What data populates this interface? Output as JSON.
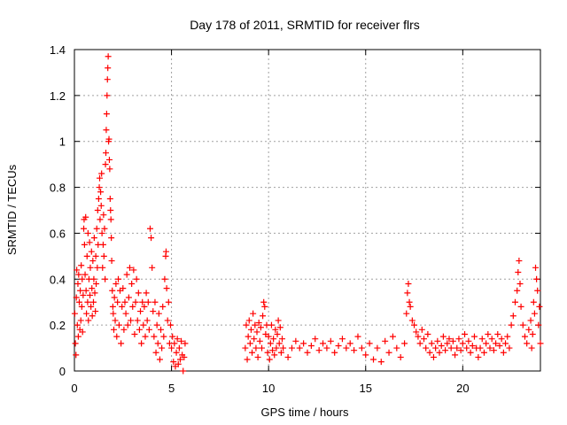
{
  "chart_data": {
    "type": "scatter",
    "title": "Day 178 of 2011, SRMTID for receiver flrs",
    "xlabel": "GPS time / hours",
    "ylabel": "SRMTID / TECUs",
    "xlim": [
      0,
      24
    ],
    "ylim": [
      0,
      1.4
    ],
    "x_ticks": [
      0,
      5,
      10,
      15,
      20
    ],
    "x_tick_labels": [
      "0",
      "5",
      "10",
      "15",
      "20"
    ],
    "y_ticks": [
      0,
      0.2,
      0.4,
      0.6,
      0.8,
      1,
      1.2,
      1.4
    ],
    "y_tick_labels": [
      "0",
      "0.2",
      "0.4",
      "0.6",
      "0.8",
      "1",
      "1.2",
      "1.4"
    ],
    "grid": true,
    "marker": "+",
    "color": "#ff0000",
    "series": [
      {
        "name": "SRMTID",
        "points": [
          [
            0.02,
            0.25
          ],
          [
            0.05,
            0.12
          ],
          [
            0.08,
            0.07
          ],
          [
            0.1,
            0.32
          ],
          [
            0.12,
            0.44
          ],
          [
            0.15,
            0.2
          ],
          [
            0.18,
            0.38
          ],
          [
            0.2,
            0.15
          ],
          [
            0.22,
            0.42
          ],
          [
            0.25,
            0.3
          ],
          [
            0.28,
            0.18
          ],
          [
            0.3,
            0.35
          ],
          [
            0.33,
            0.22
          ],
          [
            0.35,
            0.46
          ],
          [
            0.38,
            0.28
          ],
          [
            0.4,
            0.4
          ],
          [
            0.42,
            0.17
          ],
          [
            0.45,
            0.33
          ],
          [
            0.48,
            0.62
          ],
          [
            0.5,
            0.66
          ],
          [
            0.52,
            0.55
          ],
          [
            0.55,
            0.42
          ],
          [
            0.58,
            0.67
          ],
          [
            0.6,
            0.35
          ],
          [
            0.62,
            0.25
          ],
          [
            0.65,
            0.5
          ],
          [
            0.68,
            0.3
          ],
          [
            0.7,
            0.6
          ],
          [
            0.72,
            0.22
          ],
          [
            0.75,
            0.4
          ],
          [
            0.78,
            0.56
          ],
          [
            0.8,
            0.33
          ],
          [
            0.82,
            0.45
          ],
          [
            0.85,
            0.28
          ],
          [
            0.88,
            0.52
          ],
          [
            0.9,
            0.36
          ],
          [
            0.92,
            0.24
          ],
          [
            0.95,
            0.48
          ],
          [
            0.98,
            0.3
          ],
          [
            1.0,
            0.4
          ],
          [
            1.02,
            0.58
          ],
          [
            1.05,
            0.34
          ],
          [
            1.08,
            0.26
          ],
          [
            1.1,
            0.5
          ],
          [
            1.12,
            0.38
          ],
          [
            1.15,
            0.62
          ],
          [
            1.18,
            0.45
          ],
          [
            1.2,
            0.7
          ],
          [
            1.22,
            0.55
          ],
          [
            1.25,
            0.75
          ],
          [
            1.28,
            0.8
          ],
          [
            1.3,
            0.84
          ],
          [
            1.32,
            0.66
          ],
          [
            1.35,
            0.78
          ],
          [
            1.38,
            0.72
          ],
          [
            1.4,
            0.86
          ],
          [
            1.42,
            0.6
          ],
          [
            1.45,
            0.45
          ],
          [
            1.48,
            0.55
          ],
          [
            1.5,
            0.68
          ],
          [
            1.52,
            0.5
          ],
          [
            1.55,
            0.62
          ],
          [
            1.58,
            0.4
          ],
          [
            1.6,
            0.9
          ],
          [
            1.62,
            0.95
          ],
          [
            1.64,
            1.05
          ],
          [
            1.66,
            1.12
          ],
          [
            1.68,
            1.2
          ],
          [
            1.7,
            1.27
          ],
          [
            1.72,
            1.32
          ],
          [
            1.74,
            1.37
          ],
          [
            1.76,
            1.0
          ],
          [
            1.78,
            1.01
          ],
          [
            1.8,
            0.92
          ],
          [
            1.82,
            0.88
          ],
          [
            1.84,
            0.75
          ],
          [
            1.86,
            0.7
          ],
          [
            1.88,
            0.66
          ],
          [
            1.9,
            0.58
          ],
          [
            1.92,
            0.48
          ],
          [
            1.95,
            0.35
          ],
          [
            1.98,
            0.28
          ],
          [
            2.0,
            0.25
          ],
          [
            2.03,
            0.18
          ],
          [
            2.06,
            0.32
          ],
          [
            2.1,
            0.22
          ],
          [
            2.14,
            0.38
          ],
          [
            2.18,
            0.15
          ],
          [
            2.22,
            0.3
          ],
          [
            2.26,
            0.4
          ],
          [
            2.3,
            0.2
          ],
          [
            2.35,
            0.35
          ],
          [
            2.4,
            0.12
          ],
          [
            2.45,
            0.28
          ],
          [
            2.5,
            0.36
          ],
          [
            2.55,
            0.18
          ],
          [
            2.6,
            0.3
          ],
          [
            2.65,
            0.25
          ],
          [
            2.7,
            0.42
          ],
          [
            2.75,
            0.2
          ],
          [
            2.8,
            0.32
          ],
          [
            2.85,
            0.45
          ],
          [
            2.9,
            0.22
          ],
          [
            2.95,
            0.38
          ],
          [
            3.0,
            0.28
          ],
          [
            3.05,
            0.44
          ],
          [
            3.1,
            0.16
          ],
          [
            3.15,
            0.3
          ],
          [
            3.2,
            0.4
          ],
          [
            3.25,
            0.22
          ],
          [
            3.3,
            0.34
          ],
          [
            3.35,
            0.18
          ],
          [
            3.4,
            0.26
          ],
          [
            3.45,
            0.12
          ],
          [
            3.5,
            0.3
          ],
          [
            3.55,
            0.2
          ],
          [
            3.6,
            0.28
          ],
          [
            3.65,
            0.15
          ],
          [
            3.7,
            0.34
          ],
          [
            3.75,
            0.22
          ],
          [
            3.8,
            0.3
          ],
          [
            3.85,
            0.18
          ],
          [
            3.9,
            0.62
          ],
          [
            3.95,
            0.58
          ],
          [
            4.0,
            0.45
          ],
          [
            4.05,
            0.26
          ],
          [
            4.1,
            0.15
          ],
          [
            4.15,
            0.3
          ],
          [
            4.2,
            0.08
          ],
          [
            4.25,
            0.2
          ],
          [
            4.3,
            0.12
          ],
          [
            4.35,
            0.25
          ],
          [
            4.4,
            0.05
          ],
          [
            4.45,
            0.18
          ],
          [
            4.5,
            0.1
          ],
          [
            4.55,
            0.28
          ],
          [
            4.6,
            0.15
          ],
          [
            4.65,
            0.4
          ],
          [
            4.7,
            0.5
          ],
          [
            4.72,
            0.52
          ],
          [
            4.75,
            0.36
          ],
          [
            4.8,
            0.22
          ],
          [
            4.85,
            0.3
          ],
          [
            4.9,
            0.12
          ],
          [
            4.95,
            0.2
          ],
          [
            5.0,
            0.1
          ],
          [
            5.05,
            0.15
          ],
          [
            5.1,
            0.04
          ],
          [
            5.15,
            0.12
          ],
          [
            5.2,
            0.02
          ],
          [
            5.25,
            0.08
          ],
          [
            5.3,
            0.14
          ],
          [
            5.35,
            0.03
          ],
          [
            5.4,
            0.1
          ],
          [
            5.45,
            0.05
          ],
          [
            5.5,
            0.13
          ],
          [
            5.55,
            0.07
          ],
          [
            5.6,
            0.0
          ],
          [
            5.65,
            0.06
          ],
          [
            5.7,
            0.12
          ],
          [
            8.8,
            0.1
          ],
          [
            8.85,
            0.2
          ],
          [
            8.9,
            0.05
          ],
          [
            8.95,
            0.15
          ],
          [
            9.0,
            0.22
          ],
          [
            9.05,
            0.12
          ],
          [
            9.1,
            0.18
          ],
          [
            9.15,
            0.08
          ],
          [
            9.2,
            0.25
          ],
          [
            9.25,
            0.14
          ],
          [
            9.3,
            0.2
          ],
          [
            9.35,
            0.1
          ],
          [
            9.4,
            0.17
          ],
          [
            9.45,
            0.06
          ],
          [
            9.5,
            0.21
          ],
          [
            9.55,
            0.13
          ],
          [
            9.6,
            0.19
          ],
          [
            9.65,
            0.1
          ],
          [
            9.7,
            0.24
          ],
          [
            9.75,
            0.3
          ],
          [
            9.8,
            0.28
          ],
          [
            9.85,
            0.16
          ],
          [
            9.9,
            0.2
          ],
          [
            9.95,
            0.08
          ],
          [
            10.0,
            0.15
          ],
          [
            10.05,
            0.05
          ],
          [
            10.1,
            0.12
          ],
          [
            10.15,
            0.2
          ],
          [
            10.2,
            0.09
          ],
          [
            10.25,
            0.14
          ],
          [
            10.3,
            0.07
          ],
          [
            10.35,
            0.18
          ],
          [
            10.4,
            0.1
          ],
          [
            10.45,
            0.16
          ],
          [
            10.5,
            0.22
          ],
          [
            10.55,
            0.12
          ],
          [
            10.6,
            0.19
          ],
          [
            10.65,
            0.08
          ],
          [
            10.7,
            0.14
          ],
          [
            10.75,
            0.1
          ],
          [
            11.0,
            0.06
          ],
          [
            11.2,
            0.1
          ],
          [
            11.4,
            0.13
          ],
          [
            11.6,
            0.1
          ],
          [
            11.8,
            0.12
          ],
          [
            12.0,
            0.08
          ],
          [
            12.2,
            0.11
          ],
          [
            12.4,
            0.14
          ],
          [
            12.6,
            0.09
          ],
          [
            12.8,
            0.12
          ],
          [
            13.0,
            0.1
          ],
          [
            13.2,
            0.13
          ],
          [
            13.4,
            0.08
          ],
          [
            13.6,
            0.11
          ],
          [
            13.8,
            0.14
          ],
          [
            14.0,
            0.1
          ],
          [
            14.2,
            0.12
          ],
          [
            14.4,
            0.09
          ],
          [
            14.6,
            0.15
          ],
          [
            14.8,
            0.1
          ],
          [
            15.0,
            0.07
          ],
          [
            15.2,
            0.12
          ],
          [
            15.4,
            0.05
          ],
          [
            15.6,
            0.1
          ],
          [
            15.8,
            0.04
          ],
          [
            16.0,
            0.13
          ],
          [
            16.2,
            0.08
          ],
          [
            16.4,
            0.15
          ],
          [
            16.6,
            0.1
          ],
          [
            16.8,
            0.06
          ],
          [
            17.0,
            0.12
          ],
          [
            17.1,
            0.25
          ],
          [
            17.15,
            0.34
          ],
          [
            17.2,
            0.38
          ],
          [
            17.25,
            0.3
          ],
          [
            17.3,
            0.28
          ],
          [
            17.4,
            0.22
          ],
          [
            17.5,
            0.2
          ],
          [
            17.6,
            0.17
          ],
          [
            17.7,
            0.15
          ],
          [
            17.8,
            0.12
          ],
          [
            17.9,
            0.18
          ],
          [
            18.0,
            0.14
          ],
          [
            18.1,
            0.1
          ],
          [
            18.2,
            0.16
          ],
          [
            18.3,
            0.08
          ],
          [
            18.4,
            0.12
          ],
          [
            18.5,
            0.06
          ],
          [
            18.6,
            0.1
          ],
          [
            18.7,
            0.13
          ],
          [
            18.8,
            0.08
          ],
          [
            18.9,
            0.11
          ],
          [
            19.0,
            0.15
          ],
          [
            19.1,
            0.09
          ],
          [
            19.2,
            0.12
          ],
          [
            19.3,
            0.14
          ],
          [
            19.4,
            0.1
          ],
          [
            19.5,
            0.13
          ],
          [
            19.6,
            0.07
          ],
          [
            19.7,
            0.1
          ],
          [
            19.8,
            0.14
          ],
          [
            19.9,
            0.09
          ],
          [
            20.0,
            0.12
          ],
          [
            20.1,
            0.16
          ],
          [
            20.2,
            0.1
          ],
          [
            20.3,
            0.13
          ],
          [
            20.4,
            0.08
          ],
          [
            20.5,
            0.11
          ],
          [
            20.6,
            0.15
          ],
          [
            20.7,
            0.1
          ],
          [
            20.8,
            0.06
          ],
          [
            20.9,
            0.1
          ],
          [
            21.0,
            0.14
          ],
          [
            21.1,
            0.08
          ],
          [
            21.2,
            0.12
          ],
          [
            21.3,
            0.16
          ],
          [
            21.4,
            0.1
          ],
          [
            21.5,
            0.14
          ],
          [
            21.6,
            0.09
          ],
          [
            21.7,
            0.12
          ],
          [
            21.8,
            0.16
          ],
          [
            21.9,
            0.11
          ],
          [
            22.0,
            0.14
          ],
          [
            22.1,
            0.08
          ],
          [
            22.2,
            0.12
          ],
          [
            22.3,
            0.15
          ],
          [
            22.4,
            0.1
          ],
          [
            22.5,
            0.2
          ],
          [
            22.6,
            0.24
          ],
          [
            22.7,
            0.3
          ],
          [
            22.8,
            0.35
          ],
          [
            22.85,
            0.43
          ],
          [
            22.9,
            0.48
          ],
          [
            22.95,
            0.38
          ],
          [
            23.0,
            0.28
          ],
          [
            23.1,
            0.2
          ],
          [
            23.2,
            0.15
          ],
          [
            23.3,
            0.12
          ],
          [
            23.4,
            0.18
          ],
          [
            23.5,
            0.22
          ],
          [
            23.55,
            0.1
          ],
          [
            23.6,
            0.16
          ],
          [
            23.65,
            0.3
          ],
          [
            23.7,
            0.25
          ],
          [
            23.75,
            0.45
          ],
          [
            23.8,
            0.4
          ],
          [
            23.85,
            0.35
          ],
          [
            23.9,
            0.2
          ],
          [
            23.95,
            0.28
          ],
          [
            24.0,
            0.12
          ]
        ]
      }
    ]
  }
}
